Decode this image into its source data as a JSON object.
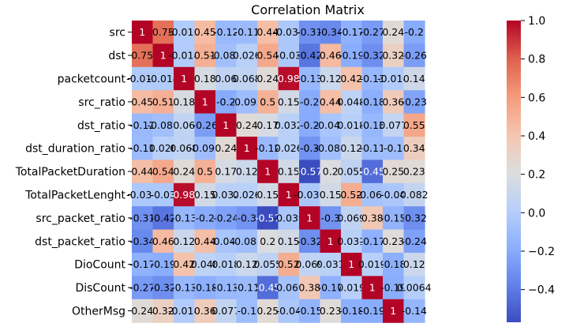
{
  "chart_data": {
    "type": "heatmap",
    "title": "Correlation Matrix",
    "row_labels": [
      "src",
      "dst",
      "packetcount",
      "src_ratio",
      "dst_ratio",
      "dst_duration_ratio",
      "TotalPacketDuration",
      "TotalPacketLenght",
      "src_packet_ratio",
      "dst_packet_ratio",
      "DioCount",
      "DisCount",
      "OtherMsg"
    ],
    "column_labels_visible": false,
    "values": [
      [
        1,
        0.75,
        -0.012,
        0.45,
        -0.12,
        -0.11,
        0.44,
        -0.034,
        -0.31,
        -0.34,
        -0.17,
        -0.27,
        0.24,
        -0.2
      ],
      [
        0.75,
        1,
        -0.014,
        0.51,
        -0.083,
        0.026,
        0.54,
        -0.03,
        -0.42,
        0.46,
        -0.19,
        -0.32,
        0.32,
        -0.26
      ],
      [
        -0.012,
        -0.014,
        1,
        0.18,
        0.06,
        0.068,
        0.24,
        0.98,
        -0.13,
        0.12,
        0.42,
        -0.13,
        -0.014,
        0.14
      ],
      [
        0.45,
        0.51,
        0.18,
        1,
        -0.2,
        -0.095,
        0.5,
        0.15,
        -0.2,
        0.44,
        0.048,
        -0.18,
        0.36,
        -0.23
      ],
      [
        -0.12,
        -0.083,
        0.06,
        -0.26,
        1,
        0.24,
        0.17,
        0.032,
        -0.2,
        -0.046,
        0.018,
        -0.13,
        0.077,
        0.55
      ],
      [
        -0.11,
        0.026,
        0.068,
        -0.095,
        0.24,
        1,
        -0.12,
        0.026,
        -0.3,
        -0.088,
        0.12,
        -0.11,
        -0.1,
        0.34
      ],
      [
        0.44,
        0.54,
        0.24,
        0.5,
        0.17,
        0.12,
        1,
        0.15,
        -0.57,
        0.2,
        0.055,
        -0.45,
        0.25,
        0.23
      ],
      [
        -0.034,
        -0.03,
        0.98,
        0.15,
        0.032,
        0.026,
        0.15,
        1,
        -0.039,
        0.15,
        0.52,
        -0.069,
        -0.04,
        0.082
      ],
      [
        -0.31,
        -0.42,
        -0.13,
        -0.2,
        -0.24,
        -0.3,
        -0.57,
        -0.039,
        1,
        -0.3,
        0.069,
        0.38,
        -0.15,
        -0.32
      ],
      [
        -0.34,
        0.46,
        0.12,
        0.44,
        -0.046,
        -0.088,
        0.2,
        0.15,
        -0.32,
        1,
        0.031,
        -0.17,
        0.23,
        -0.24
      ],
      [
        -0.17,
        -0.19,
        0.42,
        0.048,
        0.018,
        0.12,
        0.055,
        0.52,
        0.069,
        0.031,
        1,
        0.019,
        -0.18,
        0.12
      ],
      [
        -0.27,
        -0.32,
        -0.13,
        -0.18,
        -0.13,
        -0.11,
        -0.45,
        -0.069,
        0.38,
        -0.17,
        0.019,
        1,
        -0.19,
        0.0064
      ],
      [
        0.24,
        0.32,
        -0.014,
        0.36,
        0.077,
        -0.1,
        0.25,
        -0.04,
        -0.15,
        0.23,
        -0.18,
        -0.19,
        1,
        -0.14
      ]
    ],
    "colormap": "coolwarm",
    "vmin": -0.57,
    "vmax": 1,
    "colorbar_ticks": [
      1.0,
      0.8,
      0.6,
      0.4,
      0.2,
      0.0,
      -0.2,
      -0.4
    ],
    "colorbar_tick_labels": [
      "1.0",
      "0.8",
      "0.6",
      "0.4",
      "0.2",
      "0.0",
      "−0.2",
      "−0.4"
    ]
  }
}
